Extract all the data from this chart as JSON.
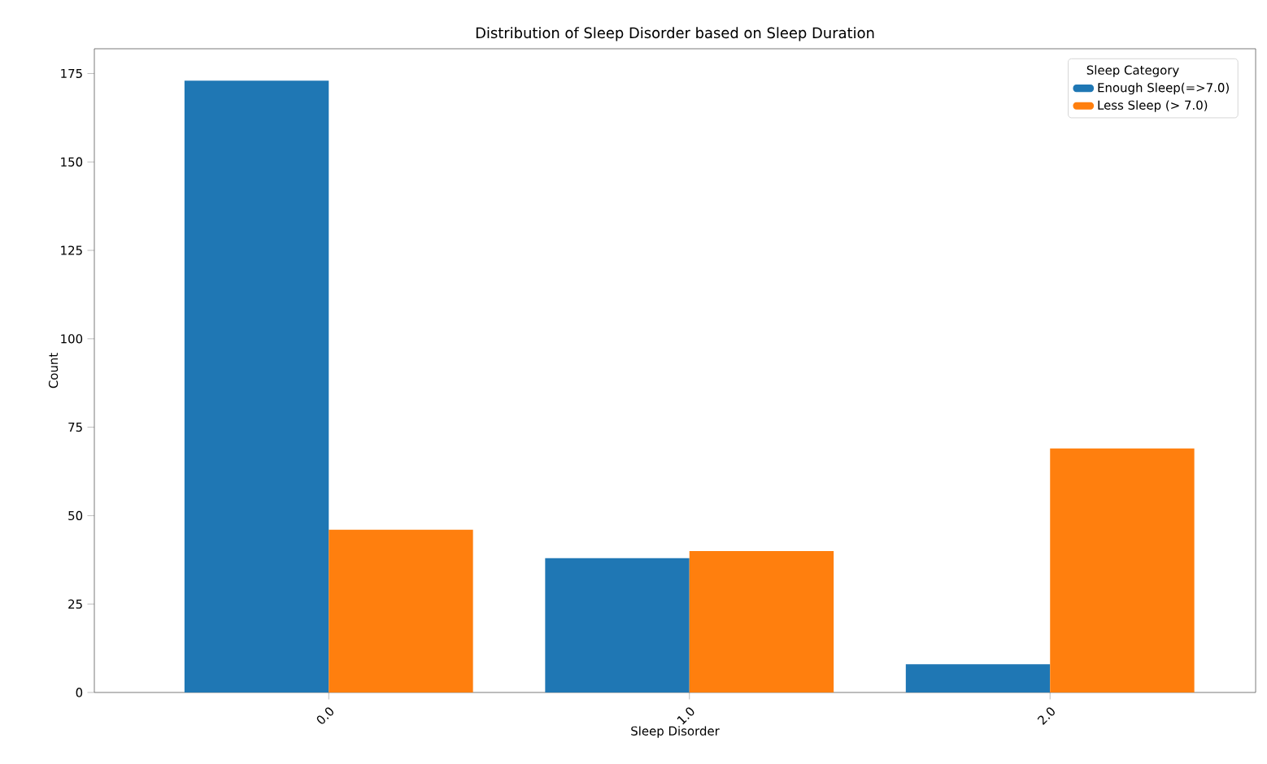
{
  "chart_data": {
    "type": "bar",
    "title": "Distribution of Sleep Disorder based on Sleep Duration",
    "xlabel": "Sleep Disorder",
    "ylabel": "Count",
    "legend_title": "Sleep Category",
    "categories": [
      "0.0",
      "1.0",
      "2.0"
    ],
    "series": [
      {
        "name": "Enough Sleep(=>7.0)",
        "color": "#1f77b4",
        "values": [
          173,
          38,
          8
        ]
      },
      {
        "name": "Less Sleep (> 7.0)",
        "color": "#ff7f0e",
        "values": [
          46,
          40,
          69
        ]
      }
    ],
    "ylim": [
      0,
      182
    ],
    "yticks": [
      0,
      25,
      50,
      75,
      100,
      125,
      150,
      175
    ],
    "grid": false,
    "legend": "top right"
  }
}
